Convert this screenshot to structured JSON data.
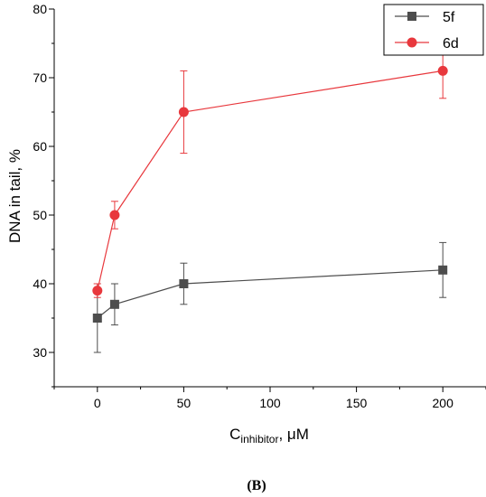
{
  "chart_data": {
    "type": "line",
    "x": [
      0,
      10,
      50,
      200
    ],
    "xlabel": {
      "main": "C",
      "subscript": "inhibitor",
      "suffix": ", μM"
    },
    "ylabel": "DNA in tail, %",
    "xlim": [
      -25,
      225
    ],
    "ylim": [
      25,
      80
    ],
    "xticks": [
      0,
      50,
      100,
      150,
      200
    ],
    "yticks": [
      30,
      40,
      50,
      60,
      70,
      80
    ],
    "series": [
      {
        "name": "5f",
        "color": "#4d4d4d",
        "marker": "square",
        "values": [
          35,
          37,
          40,
          42
        ],
        "errors": [
          5,
          3,
          3,
          4
        ]
      },
      {
        "name": "6d",
        "color": "#e8383d",
        "marker": "circle",
        "values": [
          39,
          50,
          65,
          71
        ],
        "errors": [
          1,
          2,
          6,
          4
        ]
      }
    ],
    "legend_position": "top-right",
    "grid": false
  },
  "panel_label": "(B)"
}
